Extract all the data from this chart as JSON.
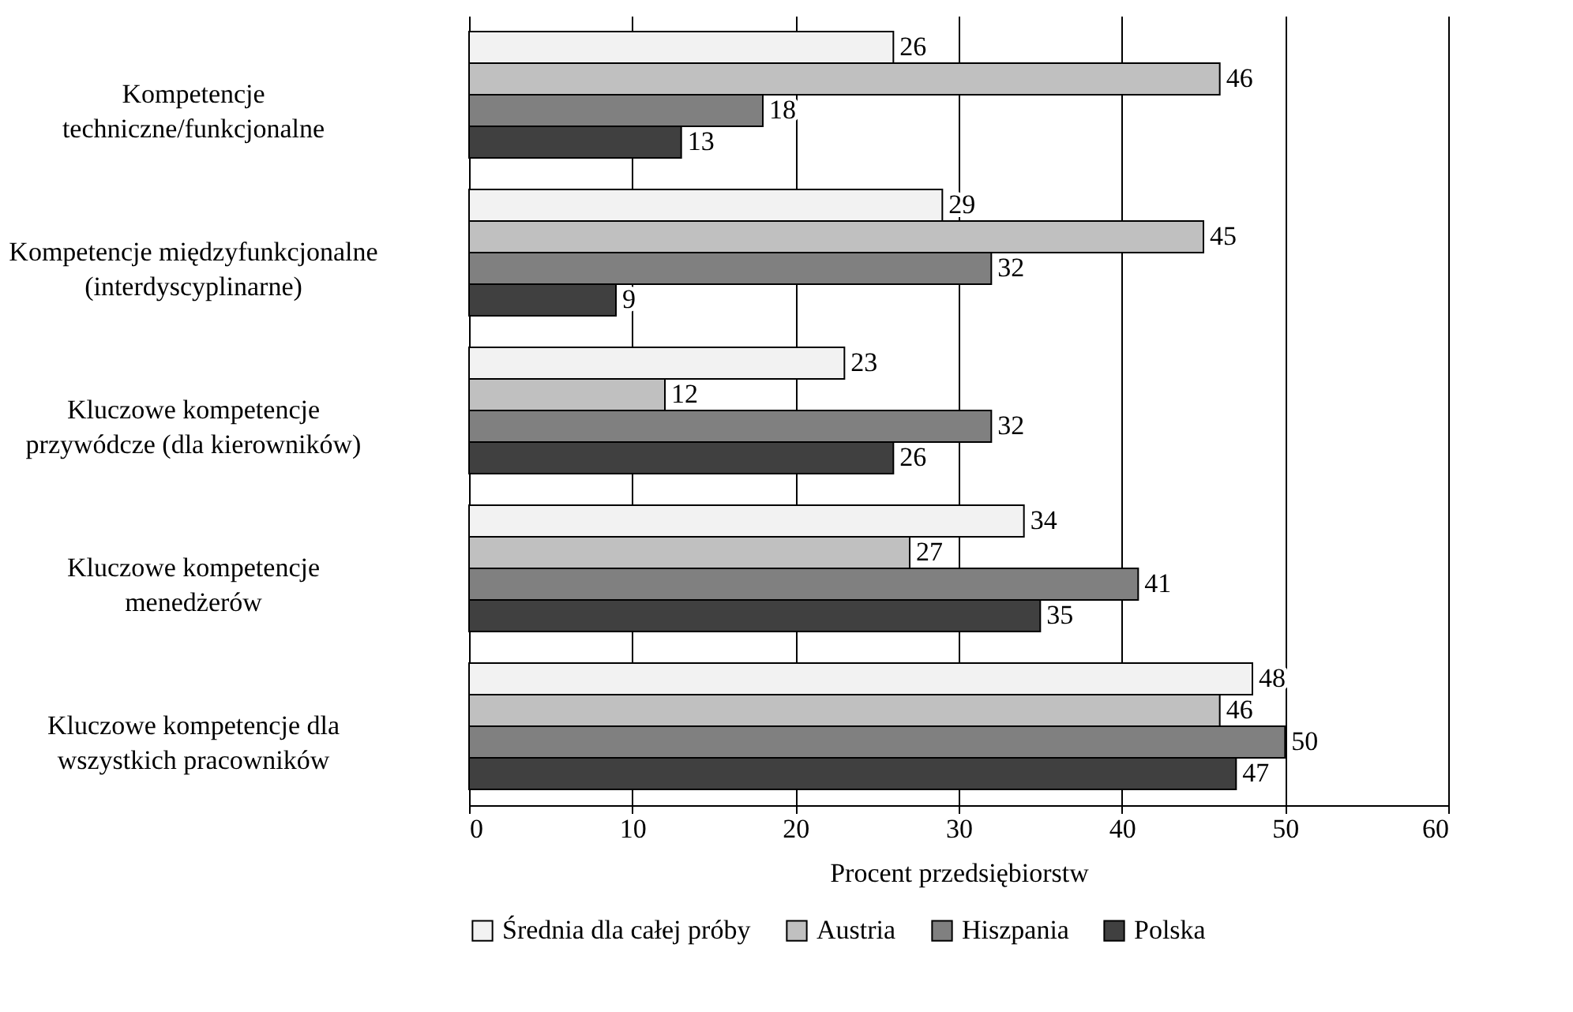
{
  "chart_data": {
    "type": "bar",
    "orientation": "horizontal",
    "xlabel": "Procent przedsiębiorstw",
    "categories": [
      "Kompetencje\ntechniczne/funkcjonalne",
      "Kompetencje międzyfunkcjonalne\n(interdyscyplinarne)",
      "Kluczowe kompetencje\nprzywódcze (dla kierowników)",
      "Kluczowe kompetencje\nmenedżerów",
      "Kluczowe kompetencje dla\nwszystkich pracowników"
    ],
    "series": [
      {
        "name": "Średnia dla całej próby",
        "color": "#f2f2f2",
        "values": [
          26,
          29,
          23,
          34,
          48
        ]
      },
      {
        "name": "Austria",
        "color": "#c0c0c0",
        "values": [
          46,
          45,
          12,
          27,
          46
        ]
      },
      {
        "name": "Hiszpania",
        "color": "#808080",
        "values": [
          18,
          32,
          32,
          41,
          50
        ]
      },
      {
        "name": "Polska",
        "color": "#404040",
        "values": [
          13,
          9,
          26,
          35,
          47
        ]
      }
    ],
    "xlim": [
      0,
      60
    ],
    "xticks": [
      0,
      10,
      20,
      30,
      40,
      50,
      60
    ],
    "grid": "x",
    "legend": "bottom",
    "data_labels": true
  }
}
